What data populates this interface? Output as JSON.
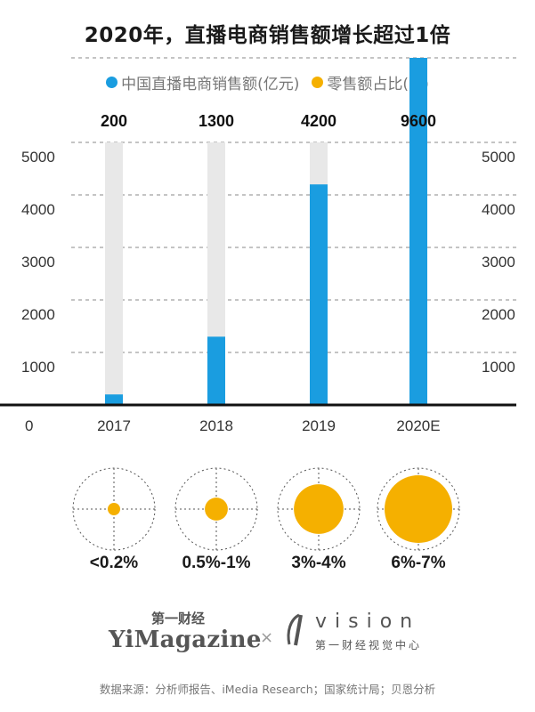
{
  "title": "2020年，直播电商销售额增长超过1倍",
  "legend": [
    {
      "label": "中国直播电商销售额(亿元)",
      "color": "#1a9de0"
    },
    {
      "label": "零售额占比(%)",
      "color": "#f5b000"
    }
  ],
  "colors": {
    "bar": "#1a9de0",
    "track": "#e8e8e8",
    "dot": "#f5b000",
    "axis": "#111111"
  },
  "chart_data": {
    "type": "bar",
    "categories": [
      "2017",
      "2018",
      "2019",
      "2020E"
    ],
    "values": [
      200,
      1300,
      4200,
      9600
    ],
    "value_labels": [
      "200",
      "1300",
      "4200",
      "9600"
    ],
    "ylim": [
      0,
      5000
    ],
    "yticks": [
      1000,
      2000,
      3000,
      4000,
      5000
    ],
    "ytick_labels": [
      "1000",
      "2000",
      "3000",
      "4000",
      "5000"
    ],
    "zero_label": "0",
    "track_max": 5000,
    "series_name": "中国直播电商销售额(亿元)",
    "grid": true
  },
  "share_data": {
    "categories": [
      "2017",
      "2018",
      "2019",
      "2020E"
    ],
    "labels": [
      "<0.2%",
      "0.5%-1%",
      "3%-4%",
      "6%-7%"
    ],
    "share_pct": [
      0.2,
      0.75,
      3.5,
      6.5
    ],
    "series_name": "零售额占比(%)"
  },
  "logos": {
    "yi_cn": "第一财经",
    "yi_en": "YiMagazine",
    "cross": "×",
    "vision": "vision",
    "vision_sub": "第一财经视觉中心"
  },
  "source": "数据来源：分析师报告、iMedia Research；国家统计局；贝恩分析"
}
